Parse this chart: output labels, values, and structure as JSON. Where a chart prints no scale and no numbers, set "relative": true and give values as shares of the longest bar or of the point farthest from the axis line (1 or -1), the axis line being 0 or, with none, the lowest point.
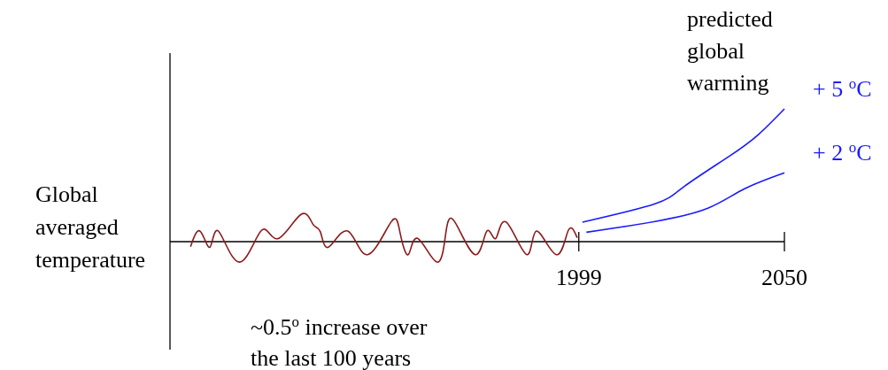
{
  "chart_data": {
    "type": "line",
    "relative": true,
    "ylabel": "Global averaged temperature",
    "xlim": [
      1897.6,
      2050
    ],
    "xticks": [
      1999,
      2050
    ],
    "tick_labels": "x",
    "annotations": [
      "predicted global warming",
      "~0.5$^{o}$ increase over the last 100 years"
    ],
    "series": [
      {
        "color": "#8b1a1a",
        "x": [
          1902.7,
          1905.1,
          1907.5,
          1909.6,
          1914.8,
          1920.3,
          1924.3,
          1930.1,
          1933.1,
          1934.9,
          1936.9,
          1941.7,
          1946.6,
          1952.5,
          1954.7,
          1956.7,
          1959.0,
          1963.8,
          1966.0,
          1968.2,
          1973.3,
          1976.2,
          1978.4,
          1981.0,
          1986.1,
          1988.5,
          1993.4,
          1996.4,
          1998.6
        ],
        "values": [
          -0.038,
          0.078,
          -0.042,
          0.08,
          -0.154,
          0.085,
          0.022,
          0.205,
          0.129,
          0.074,
          -0.042,
          0.08,
          -0.098,
          0.151,
          0.062,
          -0.098,
          0.025,
          -0.154,
          0.062,
          0.151,
          -0.098,
          0.08,
          0.024,
          0.147,
          -0.098,
          0.08,
          -0.098,
          0.085,
          0.029
        ]
      },
      {
        "name": "+ 5 $^{o}$C",
        "color": "#1a1aff",
        "x": [
          1999.9,
          2017.9,
          2025.3,
          2036.2,
          2043.6,
          2050
        ],
        "values": [
          0.147,
          0.285,
          0.419,
          0.641,
          0.808,
          1
        ]
      },
      {
        "name": "+ 2 $^{o}$C",
        "color": "#1a1aff",
        "x": [
          2000.9,
          2017.9,
          2031.0,
          2040.0,
          2050
        ],
        "values": [
          0.071,
          0.152,
          0.252,
          0.397,
          0.519
        ]
      }
    ]
  }
}
